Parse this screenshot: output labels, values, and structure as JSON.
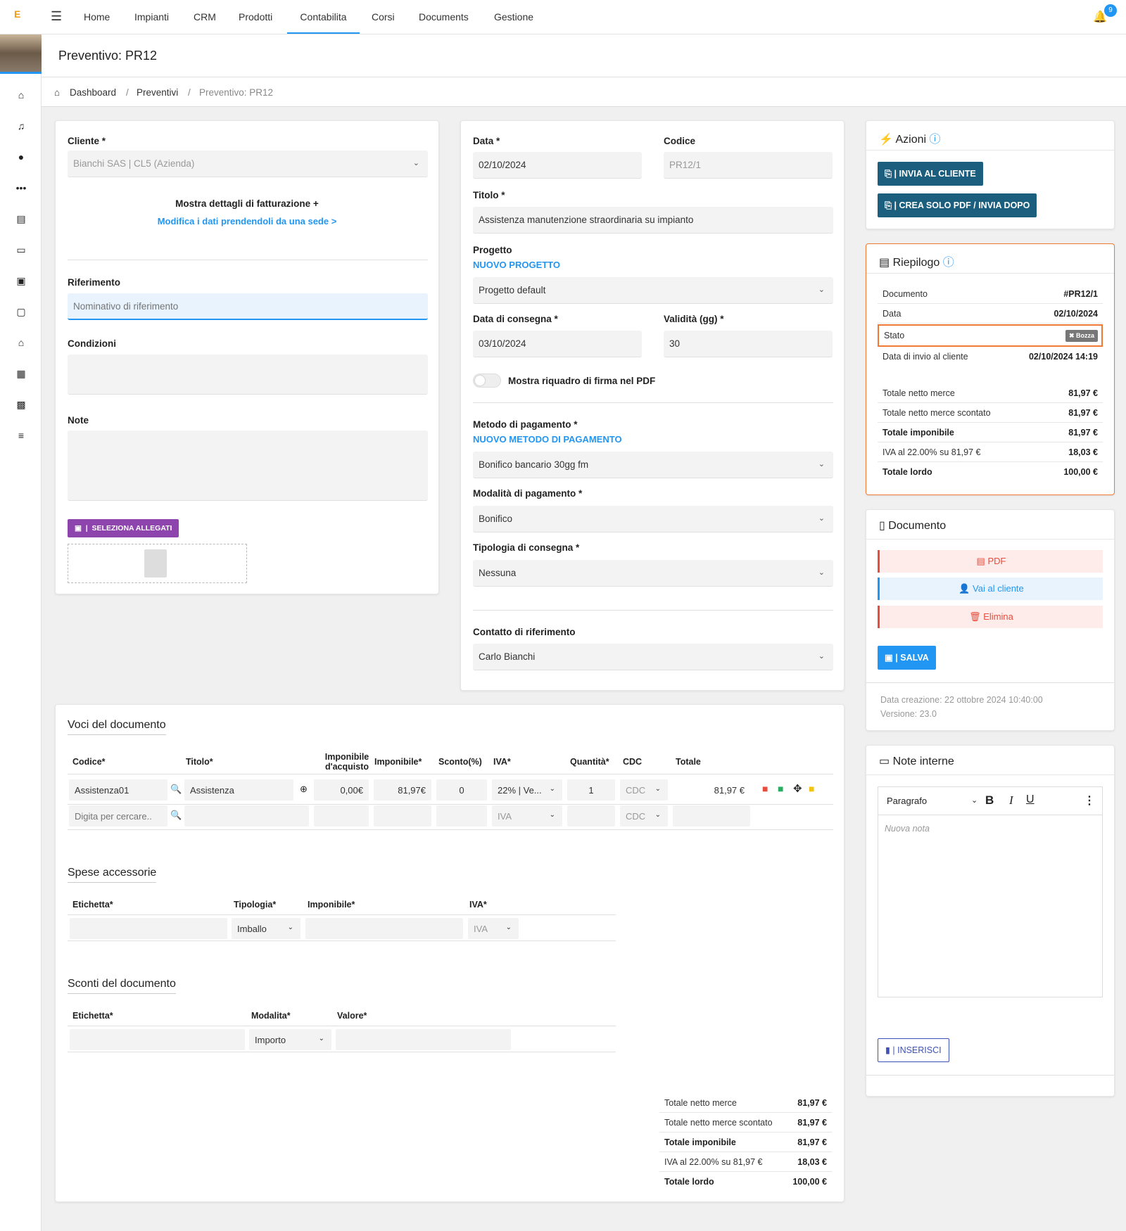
{
  "nav": {
    "logo": "E",
    "items": [
      "Home",
      "Impianti",
      "CRM",
      "Prodotti",
      "Contabilita",
      "Corsi",
      "Documents",
      "Gestione"
    ],
    "notifications": "9"
  },
  "header": {
    "title": "Preventivo: PR12"
  },
  "breadcrumb": [
    "Dashboard",
    "Preventivi",
    "Preventivo: PR12"
  ],
  "left": {
    "cliente_label": "Cliente *",
    "cliente_value": "Bianchi SAS | CL5 (Azienda)",
    "show_billing": "Mostra dettagli di fatturazione +",
    "edit_from_site": "Modifica i dati prendendoli da una sede >",
    "riferimento_label": "Riferimento",
    "riferimento_placeholder": "Nominativo di riferimento",
    "condizioni_label": "Condizioni",
    "note_label": "Note",
    "attachments_button": "SELEZIONA ALLEGATI"
  },
  "mid": {
    "data_label": "Data *",
    "data_value": "02/10/2024",
    "codice_label": "Codice",
    "codice_value": "PR12/1",
    "titolo_label": "Titolo *",
    "titolo_value": "Assistenza manutenzione straordinaria su impianto",
    "progetto_label": "Progetto",
    "nuovo_progetto": "NUOVO PROGETTO",
    "progetto_value": "Progetto default",
    "consegna_label": "Data di consegna *",
    "consegna_value": "03/10/2024",
    "validita_label": "Validità (gg) *",
    "validita_value": "30",
    "firma_label": "Mostra riquadro di firma nel PDF",
    "metodo_label": "Metodo di pagamento *",
    "nuovo_metodo": "NUOVO METODO DI PAGAMENTO",
    "metodo_value": "Bonifico bancario 30gg fm",
    "modalita_label": "Modalità di pagamento *",
    "modalita_value": "Bonifico",
    "tipologia_label": "Tipologia di consegna *",
    "tipologia_value": "Nessuna",
    "contatto_label": "Contatto di riferimento",
    "contatto_value": "Carlo Bianchi"
  },
  "azioni": {
    "title": "Azioni",
    "invia": "INVIA AL CLIENTE",
    "crea_pdf": "CREA SOLO PDF / INVIA DOPO"
  },
  "riepilogo": {
    "title": "Riepilogo",
    "rows": [
      {
        "k": "Documento",
        "v": "#PR12/1"
      },
      {
        "k": "Data",
        "v": "02/10/2024"
      },
      {
        "k": "Stato",
        "v": "Bozza"
      },
      {
        "k": "Data di invio al cliente",
        "v": "02/10/2024 14:19"
      }
    ],
    "totals": [
      {
        "k": "Totale netto merce",
        "v": "81,97 €"
      },
      {
        "k": "Totale netto merce scontato",
        "v": "81,97 €"
      },
      {
        "k": "Totale imponibile",
        "v": "81,97 €"
      },
      {
        "k": "IVA al 22.00% su 81,97 €",
        "v": "18,03 €"
      },
      {
        "k": "Totale lordo",
        "v": "100,00 €"
      }
    ]
  },
  "documento": {
    "title": "Documento",
    "pdf": "PDF",
    "cliente": "Vai al cliente",
    "elimina": "Elimina",
    "salva": "SALVA",
    "creazione": "Data creazione: 22 ottobre 2024 10:40:00",
    "versione": "Versione: 23.0"
  },
  "note_interne": {
    "title": "Note interne",
    "paragraph": "Paragrafo",
    "placeholder": "Nuova nota",
    "inserisci": "INSERISCI"
  },
  "voci": {
    "title": "Voci del documento",
    "headers": [
      "Codice*",
      "Titolo*",
      "Imponibile d'acquisto",
      "Imponibile*",
      "Sconto(%)",
      "IVA*",
      "Quantità*",
      "CDC",
      "Totale"
    ],
    "row": {
      "codice": "Assistenza01",
      "titolo": "Assistenza",
      "acquisto": "0,00€",
      "imponibile": "81,97€",
      "sconto": "0",
      "iva": "22% | Ve...",
      "qty": "1",
      "cdc": "CDC",
      "totale": "81,97 €"
    },
    "new_row": {
      "codice_placeholder": "Digita per cercare..",
      "iva": "IVA",
      "cdc": "CDC"
    }
  },
  "spese": {
    "title": "Spese accessorie",
    "headers": [
      "Etichetta*",
      "Tipologia*",
      "Imponibile*",
      "IVA*"
    ],
    "tipologia": "Imballo",
    "iva": "IVA"
  },
  "sconti": {
    "title": "Sconti del documento",
    "headers": [
      "Etichetta*",
      "Modalita*",
      "Valore*"
    ],
    "modalita": "Importo"
  },
  "bottom_totals": [
    {
      "k": "Totale netto merce",
      "v": "81,97 €"
    },
    {
      "k": "Totale netto merce scontato",
      "v": "81,97 €"
    },
    {
      "k": "Totale imponibile",
      "v": "81,97 €"
    },
    {
      "k": "IVA al 22.00% su 81,97 €",
      "v": "18,03 €"
    },
    {
      "k": "Totale lordo",
      "v": "100,00 €"
    }
  ],
  "colors": {
    "accent": "#2196f3",
    "dark_button": "#1b5e7e",
    "purple": "#8e44ad",
    "danger": "#e74c3c",
    "summary_border": "#f07a35"
  },
  "icons": [
    "home-icon",
    "bell-icon",
    "chat-icon",
    "dots-icon",
    "document-icon",
    "inbox-icon",
    "money-icon",
    "archive-icon",
    "bank-icon",
    "contact-icon",
    "book-icon",
    "settings-icon"
  ]
}
